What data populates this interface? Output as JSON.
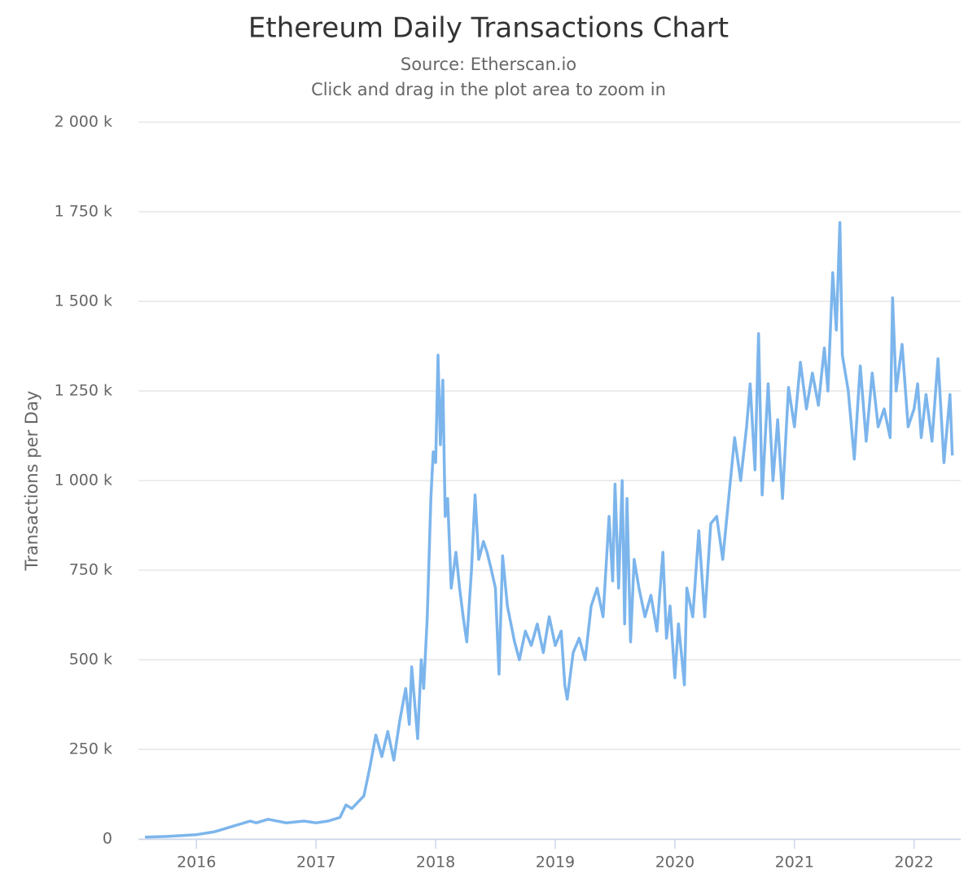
{
  "chart_data": {
    "type": "line",
    "title": "Ethereum Daily Transactions Chart",
    "subtitle": "Source: Etherscan.io",
    "note": "Click and drag in the plot area to zoom in",
    "y_label": "Transactions per Day",
    "xlim": [
      2015.515,
      2022.39
    ],
    "xticks": [
      2016,
      2017,
      2018,
      2019,
      2020,
      2021,
      2022
    ],
    "ylim": [
      0,
      2000000
    ],
    "yticks": [
      0,
      {
        "value": 250000,
        "label": "250 k"
      },
      {
        "value": 500000,
        "label": "500 k"
      },
      {
        "value": 750000,
        "label": "750 k"
      },
      {
        "value": 1000000,
        "label": "1 000 k"
      },
      {
        "value": 1250000,
        "label": "1 250 k"
      },
      {
        "value": 1500000,
        "label": "1 500 k"
      },
      {
        "value": 1750000,
        "label": "1 750 k"
      },
      {
        "value": 2000000,
        "label": "2 000 k"
      }
    ],
    "grid": true,
    "x": [
      2015.57,
      2015.75,
      2016.0,
      2016.15,
      2016.3,
      2016.45,
      2016.5,
      2016.6,
      2016.75,
      2016.9,
      2017.0,
      2017.1,
      2017.2,
      2017.25,
      2017.3,
      2017.4,
      2017.45,
      2017.5,
      2017.55,
      2017.6,
      2017.65,
      2017.7,
      2017.75,
      2017.78,
      2017.8,
      2017.85,
      2017.88,
      2017.9,
      2017.93,
      2017.96,
      2017.98,
      2018.0,
      2018.02,
      2018.04,
      2018.06,
      2018.08,
      2018.1,
      2018.13,
      2018.17,
      2018.2,
      2018.23,
      2018.26,
      2018.3,
      2018.33,
      2018.36,
      2018.4,
      2018.43,
      2018.46,
      2018.5,
      2018.53,
      2018.56,
      2018.6,
      2018.63,
      2018.66,
      2018.7,
      2018.75,
      2018.8,
      2018.85,
      2018.9,
      2018.95,
      2019.0,
      2019.05,
      2019.08,
      2019.1,
      2019.15,
      2019.2,
      2019.25,
      2019.3,
      2019.35,
      2019.4,
      2019.45,
      2019.48,
      2019.5,
      2019.53,
      2019.56,
      2019.58,
      2019.6,
      2019.63,
      2019.66,
      2019.7,
      2019.75,
      2019.8,
      2019.85,
      2019.9,
      2019.93,
      2019.96,
      2020.0,
      2020.03,
      2020.06,
      2020.08,
      2020.1,
      2020.15,
      2020.2,
      2020.25,
      2020.3,
      2020.35,
      2020.4,
      2020.45,
      2020.5,
      2020.55,
      2020.6,
      2020.63,
      2020.67,
      2020.7,
      2020.73,
      2020.78,
      2020.82,
      2020.86,
      2020.9,
      2020.95,
      2021.0,
      2021.05,
      2021.1,
      2021.15,
      2021.2,
      2021.25,
      2021.28,
      2021.32,
      2021.35,
      2021.38,
      2021.4,
      2021.45,
      2021.5,
      2021.55,
      2021.6,
      2021.65,
      2021.7,
      2021.75,
      2021.8,
      2021.82,
      2021.85,
      2021.9,
      2021.95,
      2022.0,
      2022.03,
      2022.06,
      2022.1,
      2022.15,
      2022.2,
      2022.25,
      2022.3,
      2022.32
    ],
    "series": [
      {
        "name": "Transactions per Day",
        "color": "#7cb5ec",
        "values": [
          5000,
          7000,
          12000,
          20000,
          35000,
          50000,
          45000,
          55000,
          45000,
          50000,
          45000,
          50000,
          60000,
          95000,
          85000,
          120000,
          200000,
          290000,
          230000,
          300000,
          220000,
          330000,
          420000,
          320000,
          480000,
          280000,
          500000,
          420000,
          620000,
          950000,
          1080000,
          1050000,
          1350000,
          1100000,
          1280000,
          900000,
          950000,
          700000,
          800000,
          700000,
          620000,
          550000,
          750000,
          960000,
          780000,
          830000,
          800000,
          760000,
          700000,
          460000,
          790000,
          650000,
          600000,
          550000,
          500000,
          580000,
          540000,
          600000,
          520000,
          620000,
          540000,
          580000,
          430000,
          390000,
          520000,
          560000,
          500000,
          650000,
          700000,
          620000,
          900000,
          720000,
          990000,
          700000,
          1000000,
          600000,
          950000,
          550000,
          780000,
          700000,
          620000,
          680000,
          580000,
          800000,
          560000,
          650000,
          450000,
          600000,
          500000,
          430000,
          700000,
          620000,
          860000,
          620000,
          880000,
          900000,
          780000,
          950000,
          1120000,
          1000000,
          1150000,
          1270000,
          1030000,
          1410000,
          960000,
          1270000,
          1000000,
          1170000,
          950000,
          1260000,
          1150000,
          1330000,
          1200000,
          1300000,
          1210000,
          1370000,
          1250000,
          1580000,
          1420000,
          1720000,
          1350000,
          1250000,
          1060000,
          1320000,
          1110000,
          1300000,
          1150000,
          1200000,
          1120000,
          1510000,
          1250000,
          1380000,
          1150000,
          1200000,
          1270000,
          1120000,
          1240000,
          1110000,
          1340000,
          1050000,
          1240000,
          1070000
        ]
      }
    ]
  }
}
